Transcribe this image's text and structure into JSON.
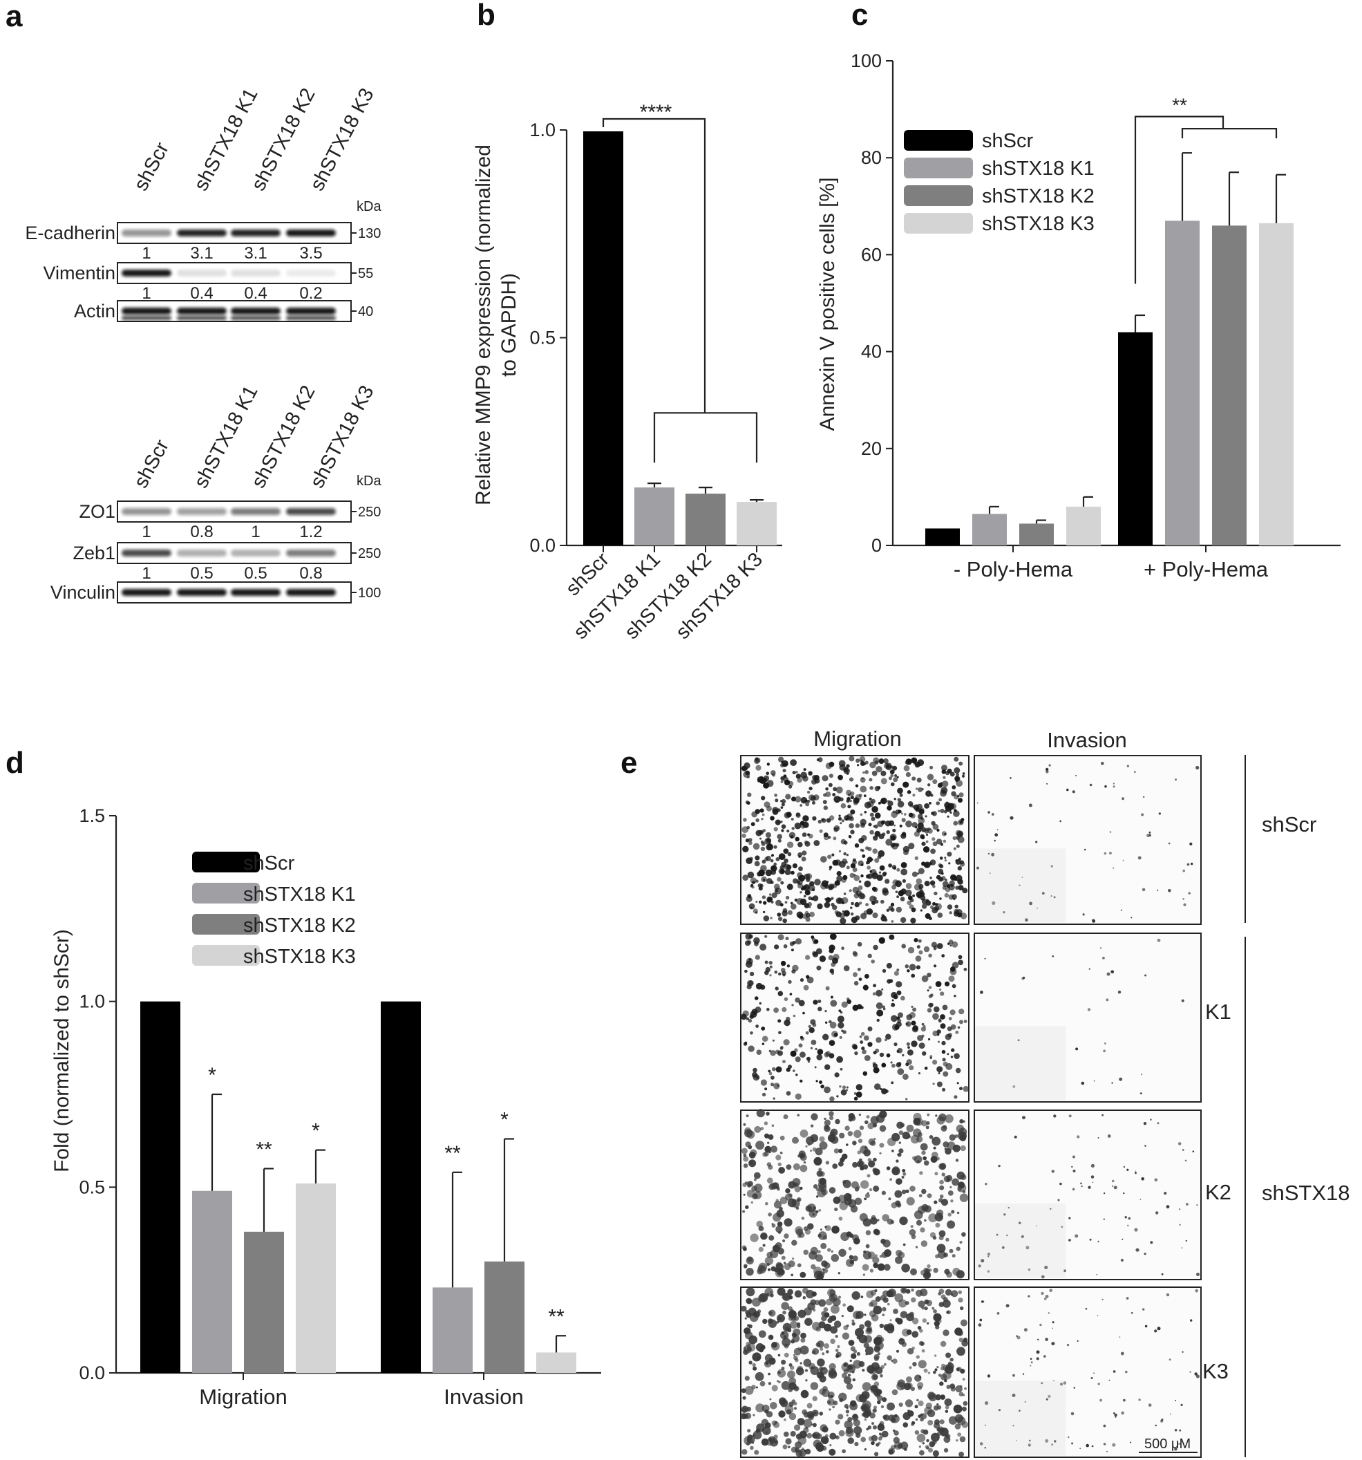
{
  "panels": {
    "a": {
      "label": "a",
      "blot_top": {
        "lanes": [
          "shScr",
          "shSTX18 K1",
          "shSTX18 K2",
          "shSTX18 K3"
        ],
        "kda_label": "kDa",
        "rows": [
          {
            "name": "E-cadherin",
            "marker": "130",
            "quant": [
              "1",
              "3.1",
              "3.1",
              "3.5"
            ],
            "intensity": [
              0.45,
              0.9,
              0.9,
              0.95
            ]
          },
          {
            "name": "Vimentin",
            "marker": "55",
            "quant": [
              "1",
              "0.4",
              "0.4",
              "0.2"
            ],
            "intensity": [
              0.95,
              0.12,
              0.12,
              0.08
            ]
          },
          {
            "name": "Actin",
            "marker": "40",
            "quant": [],
            "intensity": [
              0.95,
              0.95,
              0.95,
              0.95
            ]
          }
        ]
      },
      "blot_bottom": {
        "lanes": [
          "shScr",
          "shSTX18 K1",
          "shSTX18 K2",
          "shSTX18 K3"
        ],
        "kda_label": "kDa",
        "rows": [
          {
            "name": "ZO1",
            "marker": "250",
            "quant": [
              "1",
              "0.8",
              "1",
              "1.2"
            ],
            "intensity": [
              0.45,
              0.4,
              0.55,
              0.75
            ]
          },
          {
            "name": "Zeb1",
            "marker": "250",
            "quant": [
              "1",
              "0.5",
              "0.5",
              "0.8"
            ],
            "intensity": [
              0.75,
              0.35,
              0.3,
              0.55
            ]
          },
          {
            "name": "Vinculin",
            "marker": "100",
            "quant": [],
            "intensity": [
              0.95,
              0.95,
              0.95,
              0.95
            ]
          }
        ]
      }
    },
    "b": {
      "label": "b"
    },
    "c": {
      "label": "c"
    },
    "d": {
      "label": "d"
    },
    "e": {
      "label": "e",
      "col_headers": [
        "Migration",
        "Invasion"
      ],
      "row_labels": [
        "K1",
        "K2",
        "K3"
      ],
      "group_labels": [
        "shScr",
        "shSTX18"
      ],
      "scale_bar": "500 μM",
      "cell_density": {
        "migration": [
          0.9,
          0.45,
          0.55,
          0.75
        ],
        "invasion": [
          0.08,
          0.03,
          0.1,
          0.12
        ]
      }
    }
  },
  "colors": {
    "shScr": "#000000",
    "K1": "#a0a0a4",
    "K2": "#7f7f7f",
    "K3": "#d4d4d4"
  },
  "chart_data": [
    {
      "panel": "b",
      "type": "bar",
      "categories": [
        "shScr",
        "shSTX18 K1",
        "shSTX18 K2",
        "shSTX18 K3"
      ],
      "values": [
        1.0,
        0.14,
        0.125,
        0.105
      ],
      "errors": [
        0,
        0.01,
        0.015,
        0.005
      ],
      "ylabel_lines": [
        "Relative MMP9 expression (normalized",
        "to GAPDH)"
      ],
      "ylim": [
        0,
        1.0
      ],
      "yticks": [
        "0.0",
        "0.5",
        "1.0"
      ],
      "significance": "****"
    },
    {
      "panel": "c",
      "type": "bar",
      "categories": [
        "- Poly-Hema",
        "+ Poly-Hema"
      ],
      "series": [
        {
          "name": "shScr",
          "values": [
            3.5,
            44
          ],
          "errors": [
            0,
            3.5
          ]
        },
        {
          "name": "shSTX18 K1",
          "values": [
            6.5,
            67
          ],
          "errors": [
            1.5,
            14
          ]
        },
        {
          "name": "shSTX18 K2",
          "values": [
            4.5,
            66
          ],
          "errors": [
            0.7,
            11
          ]
        },
        {
          "name": "shSTX18 K3",
          "values": [
            8,
            66.5
          ],
          "errors": [
            2,
            10
          ]
        }
      ],
      "ylabel": "Annexin V positive cells [%]",
      "ylim": [
        0,
        100
      ],
      "yticks": [
        "0",
        "20",
        "40",
        "60",
        "80",
        "100"
      ],
      "significance": "**",
      "legend_position": "top-left"
    },
    {
      "panel": "d",
      "type": "bar",
      "categories": [
        "Migration",
        "Invasion"
      ],
      "series": [
        {
          "name": "shScr",
          "values": [
            1.0,
            1.0
          ],
          "errors": [
            0,
            0
          ],
          "stars": [
            "",
            ""
          ]
        },
        {
          "name": "shSTX18 K1",
          "values": [
            0.49,
            0.23
          ],
          "errors": [
            0.26,
            0.31
          ],
          "stars": [
            "*",
            "**"
          ]
        },
        {
          "name": "shSTX18 K2",
          "values": [
            0.38,
            0.3
          ],
          "errors": [
            0.17,
            0.33
          ],
          "stars": [
            "**",
            "*"
          ]
        },
        {
          "name": "shSTX18 K3",
          "values": [
            0.51,
            0.055
          ],
          "errors": [
            0.09,
            0.045
          ],
          "stars": [
            "*",
            "**"
          ]
        }
      ],
      "ylabel": "Fold (normalized to shScr)",
      "ylim": [
        0,
        1.5
      ],
      "yticks": [
        "0.0",
        "0.5",
        "1.0",
        "1.5"
      ],
      "legend_position": "top-left"
    }
  ]
}
